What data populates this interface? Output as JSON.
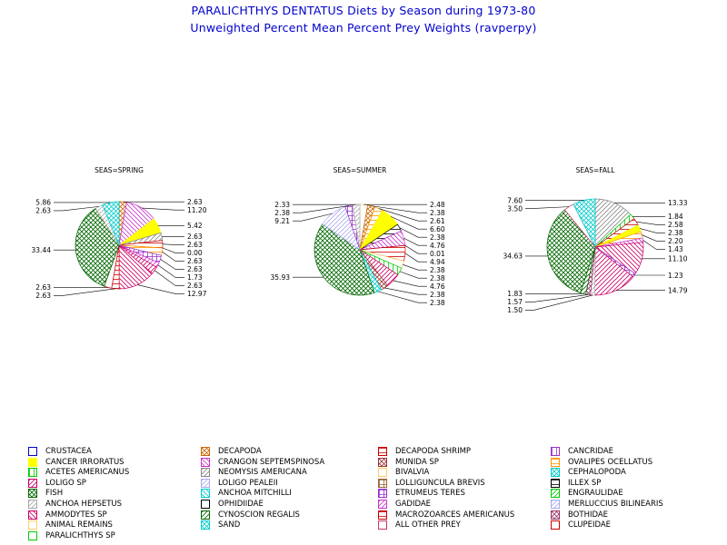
{
  "title": "PARALICHTHYS DENTATUS Diets by Season during 1973-80",
  "subtitle": "Unweighted Percent Mean Percent Prey  Weights (ravperpy)",
  "categories": [
    {
      "name": "CRUSTACEA",
      "color": "#0000cc",
      "pattern": "solid-outline"
    },
    {
      "name": "DECAPODA",
      "color": "#cc6600",
      "pattern": "cross-diag"
    },
    {
      "name": "DECAPODA SHRIMP",
      "color": "#cc0000",
      "pattern": "hlines"
    },
    {
      "name": "CANCRIDAE",
      "color": "#9933cc",
      "pattern": "vlines"
    },
    {
      "name": "CANCER IRRORATUS",
      "color": "#ffff00",
      "pattern": "solid"
    },
    {
      "name": "CRANGON SEPTEMSPINOSA",
      "color": "#cc33cc",
      "pattern": "diag-back"
    },
    {
      "name": "MUNIDA SP",
      "color": "#993333",
      "pattern": "cross-diag"
    },
    {
      "name": "OVALIPES OCELLATUS",
      "color": "#ff9900",
      "pattern": "hlines"
    },
    {
      "name": "ACETES AMERICANUS",
      "color": "#00cc00",
      "pattern": "vlines"
    },
    {
      "name": "NEOMYSIS AMERICANA",
      "color": "#888888",
      "pattern": "diag"
    },
    {
      "name": "BIVALVIA",
      "color": "#ffcc66",
      "pattern": "outline"
    },
    {
      "name": "CEPHALOPODA",
      "color": "#00cccc",
      "pattern": "cross-diag"
    },
    {
      "name": "LOLIGO SP",
      "color": "#cc0066",
      "pattern": "diag"
    },
    {
      "name": "LOLIGO PEALEII",
      "color": "#aaaaee",
      "pattern": "diag"
    },
    {
      "name": "LOLLIGUNCULA BREVIS",
      "color": "#996633",
      "pattern": "grid"
    },
    {
      "name": "ILLEX SP",
      "color": "#000000",
      "pattern": "hlines"
    },
    {
      "name": "FISH",
      "color": "#006600",
      "pattern": "cross-diag"
    },
    {
      "name": "ANCHOA HEPSETUS",
      "color": "#aaaaaa",
      "pattern": "diag"
    },
    {
      "name": "ANCHOA MITCHILLI",
      "color": "#00cccc",
      "pattern": "diag-back"
    },
    {
      "name": "OPHIDIIDAE",
      "color": "#000000",
      "pattern": "outline"
    },
    {
      "name": "ETRUMEUS TERES",
      "color": "#9933cc",
      "pattern": "grid"
    },
    {
      "name": "ENGRAULIDAE",
      "color": "#00cc00",
      "pattern": "diag"
    },
    {
      "name": "AMMODYTES SP",
      "color": "#cc0066",
      "pattern": "diag-back"
    },
    {
      "name": "CLUPEIDAE",
      "color": "#cc0000",
      "pattern": "outline"
    },
    {
      "name": "GADIDAE",
      "color": "#cc33cc",
      "pattern": "diag"
    },
    {
      "name": "MERLUCCIUS BILINEARIS",
      "color": "#aaaaee",
      "pattern": "diag"
    },
    {
      "name": "BOTHIDAE",
      "color": "#993366",
      "pattern": "cross-diag"
    },
    {
      "name": "CYNOSCION REGALIS",
      "color": "#006600",
      "pattern": "diag"
    },
    {
      "name": "ANIMAL REMAINS",
      "color": "#ffcc66",
      "pattern": "outline"
    },
    {
      "name": "MACROZOARCES AMERICANUS",
      "color": "#cc0000",
      "pattern": "hlines"
    },
    {
      "name": "SAND",
      "color": "#00cccc",
      "pattern": "cross-diag"
    },
    {
      "name": "PARALICHTHYS SP",
      "color": "#00cc00",
      "pattern": "outline"
    },
    {
      "name": "ALL OTHER PREY",
      "color": "#cc3366",
      "pattern": "outline"
    }
  ],
  "legend_order": [
    "CRUSTACEA",
    "DECAPODA",
    "DECAPODA SHRIMP",
    "CANCRIDAE",
    "CANCER IRRORATUS",
    "CRANGON SEPTEMSPINOSA",
    "MUNIDA SP",
    "OVALIPES OCELLATUS",
    "ACETES AMERICANUS",
    "NEOMYSIS AMERICANA",
    "BIVALVIA",
    "CEPHALOPODA",
    "LOLIGO SP",
    "LOLIGO PEALEII",
    "LOLLIGUNCULA BREVIS",
    "ILLEX SP",
    "FISH",
    "ANCHOA MITCHILLI",
    "ETRUMEUS TERES",
    "ENGRAULIDAE",
    "ANCHOA HEPSETUS",
    "OPHIDIIDAE",
    "GADIDAE",
    "MERLUCCIUS BILINEARIS",
    "AMMODYTES SP",
    "CYNOSCION REGALIS",
    "MACROZOARCES AMERICANUS",
    "BOTHIDAE",
    "ANIMAL REMAINS",
    "SAND",
    "ALL OTHER PREY",
    "CLUPEIDAE",
    "PARALICHTHYS SP"
  ],
  "chart_data": [
    {
      "type": "pie",
      "title": "SEAS=SPRING",
      "slices": [
        {
          "category": "DECAPODA",
          "value": 2.63
        },
        {
          "category": "CRANGON SEPTEMSPINOSA",
          "value": 11.2
        },
        {
          "category": "CANCER IRRORATUS",
          "value": 5.42
        },
        {
          "category": "NEOMYSIS AMERICANA",
          "value": 2.63
        },
        {
          "category": "DECAPODA SHRIMP",
          "value": 2.63
        },
        {
          "category": "ANCHOA MITCHILLI",
          "value": 0.0
        },
        {
          "category": "OVALIPES OCELLATUS",
          "value": 2.63
        },
        {
          "category": "ETRUMEUS TERES",
          "value": 2.63
        },
        {
          "category": "GADIDAE",
          "value": 1.73
        },
        {
          "category": "LOLIGO SP",
          "value": 2.63
        },
        {
          "category": "AMMODYTES SP",
          "value": 12.97
        },
        {
          "category": "MACROZOARCES AMERICANUS",
          "value": 2.63
        },
        {
          "category": "CLUPEIDAE",
          "value": 2.63
        },
        {
          "category": "FISH",
          "value": 33.44
        },
        {
          "category": "ANCHOA HEPSETUS",
          "value": 2.63
        },
        {
          "category": "CEPHALOPODA",
          "value": 5.86
        }
      ]
    },
    {
      "type": "pie",
      "title": "SEAS=SUMMER",
      "slices": [
        {
          "category": "BIVALVIA",
          "value": 2.48
        },
        {
          "category": "DECAPODA",
          "value": 2.38
        },
        {
          "category": "OVALIPES OCELLATUS",
          "value": 2.61
        },
        {
          "category": "CANCER IRRORATUS",
          "value": 6.6
        },
        {
          "category": "ILLEX SP",
          "value": 2.38
        },
        {
          "category": "CRANGON SEPTEMSPINOSA",
          "value": 4.76
        },
        {
          "category": "CRUSTACEA",
          "value": 0.01
        },
        {
          "category": "DECAPODA SHRIMP",
          "value": 4.94
        },
        {
          "category": "ANIMAL REMAINS",
          "value": 2.38
        },
        {
          "category": "ACETES AMERICANUS",
          "value": 2.38
        },
        {
          "category": "LOLIGO SP",
          "value": 4.76
        },
        {
          "category": "MUNIDA SP",
          "value": 2.38
        },
        {
          "category": "SAND",
          "value": 2.38
        },
        {
          "category": "FISH",
          "value": 35.93
        },
        {
          "category": "LOLIGO PEALEII",
          "value": 9.21
        },
        {
          "category": "ETRUMEUS TERES",
          "value": 2.38
        },
        {
          "category": "ANCHOA HEPSETUS",
          "value": 2.33
        }
      ]
    },
    {
      "type": "pie",
      "title": "SEAS=FALL",
      "slices": [
        {
          "category": "NEOMYSIS AMERICANA",
          "value": 13.33
        },
        {
          "category": "ACETES AMERICANUS",
          "value": 1.84
        },
        {
          "category": "DECAPODA SHRIMP",
          "value": 2.58
        },
        {
          "category": "CANCER IRRORATUS",
          "value": 2.38
        },
        {
          "category": "OVALIPES OCELLATUS",
          "value": 2.2
        },
        {
          "category": "CRANGON SEPTEMSPINOSA",
          "value": 1.43
        },
        {
          "category": "AMMODYTES SP",
          "value": 11.1
        },
        {
          "category": "ETRUMEUS TERES",
          "value": 1.23
        },
        {
          "category": "LOLIGO SP",
          "value": 14.79
        },
        {
          "category": "ANCHOA HEPSETUS",
          "value": 1.5
        },
        {
          "category": "BOTHIDAE",
          "value": 1.57
        },
        {
          "category": "CYNOSCION REGALIS",
          "value": 1.83
        },
        {
          "category": "FISH",
          "value": 34.63
        },
        {
          "category": "ALL OTHER PREY",
          "value": 3.5
        },
        {
          "category": "CEPHALOPODA",
          "value": 7.6
        }
      ]
    }
  ]
}
